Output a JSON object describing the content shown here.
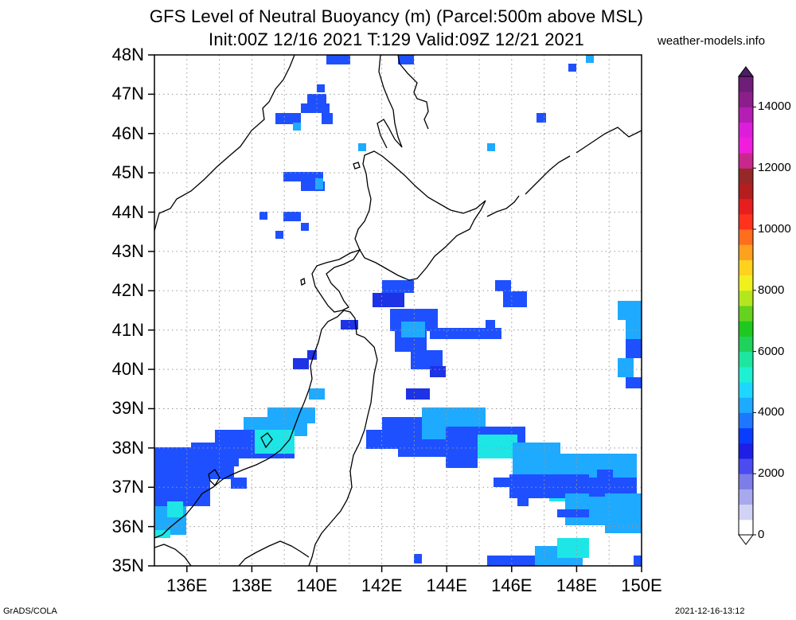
{
  "title": {
    "line1": "GFS Level of Neutral Buoyancy (m) (Parcel:500m above MSL)",
    "line2": "Init:00Z 12/16 2021 T:129 Valid:09Z 12/21 2021",
    "site": "weather-models.info"
  },
  "map": {
    "lat_labels": [
      "48N",
      "47N",
      "46N",
      "45N",
      "44N",
      "43N",
      "42N",
      "41N",
      "40N",
      "39N",
      "38N",
      "37N",
      "36N",
      "35N"
    ],
    "lon_labels": [
      "136E",
      "138E",
      "140E",
      "142E",
      "144E",
      "146E",
      "148E",
      "150E"
    ],
    "lat_range": [
      35,
      48
    ],
    "lon_range": [
      135,
      150
    ]
  },
  "colorbar": {
    "labels": [
      "14000",
      "12000",
      "10000",
      "8000",
      "6000",
      "4000",
      "2000",
      "0"
    ],
    "min": 0,
    "max": 15000,
    "colors": [
      "#ffffff",
      "#d2d2f5",
      "#a8a8ee",
      "#7d7de8",
      "#4b4bf0",
      "#1e1ee6",
      "#0a3cff",
      "#1e78ff",
      "#1eaaff",
      "#1ed7ff",
      "#1ef0d2",
      "#1ee6a0",
      "#1ed25a",
      "#1ec81e",
      "#64d21e",
      "#b4e61e",
      "#f0f01e",
      "#ffd21e",
      "#ffa01e",
      "#ff6e1e",
      "#ff321e",
      "#e61e1e",
      "#b41e1e",
      "#962828",
      "#c8288c",
      "#f01edc",
      "#dc1edc",
      "#b41eb4",
      "#8c1e8c",
      "#6e1e78"
    ]
  },
  "footer": {
    "left": "GrADS/COLA",
    "right": "2021-12-16-13:12"
  }
}
